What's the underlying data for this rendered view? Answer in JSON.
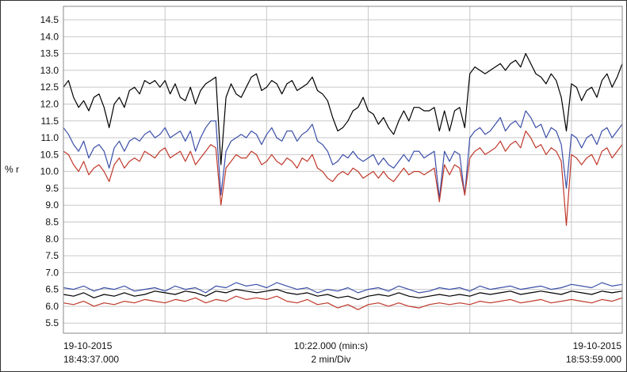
{
  "chart_data": {
    "type": "line",
    "title": "",
    "ylabel": "% r",
    "ylim": [
      5.2,
      14.9
    ],
    "yticks": [
      "14.5",
      "14.0",
      "13.5",
      "13.0",
      "12.5",
      "12.0",
      "11.5",
      "11.0",
      "10.5",
      "10.0",
      "9.5",
      "9.0",
      "8.5",
      "8.0",
      "7.5",
      "7.0",
      "6.5",
      "6.0",
      "5.5"
    ],
    "xlim": [
      0,
      11
    ],
    "x_unit": "minutes from 18:43:37",
    "grid": true,
    "footer": {
      "left_date": "19-10-2015",
      "left_time": "18:43:37.000",
      "center_time": "10:22.000 (min:s)",
      "center_scale": "2 min/Div",
      "right_date": "19-10-2015",
      "right_time": "18:53:59.000"
    },
    "series": [
      {
        "color": "#000000",
        "x": [
          0,
          0.1,
          0.2,
          0.3,
          0.4,
          0.5,
          0.6,
          0.7,
          0.8,
          0.9,
          1.0,
          1.1,
          1.2,
          1.3,
          1.4,
          1.5,
          1.6,
          1.7,
          1.8,
          1.9,
          2.0,
          2.1,
          2.2,
          2.3,
          2.4,
          2.5,
          2.6,
          2.7,
          2.8,
          2.9,
          3.0,
          3.1,
          3.2,
          3.3,
          3.4,
          3.5,
          3.6,
          3.7,
          3.8,
          3.9,
          4.0,
          4.1,
          4.2,
          4.3,
          4.4,
          4.5,
          4.6,
          4.7,
          4.8,
          4.9,
          5.0,
          5.1,
          5.2,
          5.3,
          5.4,
          5.5,
          5.6,
          5.7,
          5.8,
          5.9,
          6.0,
          6.1,
          6.2,
          6.3,
          6.4,
          6.5,
          6.6,
          6.7,
          6.8,
          6.9,
          7.0,
          7.1,
          7.2,
          7.3,
          7.4,
          7.5,
          7.6,
          7.7,
          7.8,
          7.9,
          8.0,
          8.1,
          8.2,
          8.3,
          8.4,
          8.5,
          8.6,
          8.7,
          8.8,
          8.9,
          9.0,
          9.1,
          9.2,
          9.3,
          9.4,
          9.5,
          9.6,
          9.7,
          9.8,
          9.9,
          10.0,
          10.1,
          10.2,
          10.3,
          10.4,
          10.5,
          10.6,
          10.7,
          10.8,
          10.9,
          11.0
        ],
        "values": [
          12.5,
          12.7,
          12.2,
          11.9,
          12.1,
          11.8,
          12.2,
          12.3,
          11.9,
          11.3,
          12.0,
          12.2,
          11.9,
          12.4,
          12.5,
          12.3,
          12.7,
          12.6,
          12.7,
          12.5,
          12.7,
          12.3,
          12.6,
          12.2,
          12.1,
          12.5,
          12.0,
          12.4,
          12.6,
          12.7,
          12.8,
          10.2,
          12.2,
          12.6,
          12.3,
          12.2,
          12.5,
          12.8,
          12.9,
          12.4,
          12.5,
          12.7,
          12.6,
          12.3,
          12.6,
          12.7,
          12.4,
          12.5,
          12.6,
          12.8,
          12.4,
          12.3,
          12.1,
          11.6,
          11.2,
          11.3,
          11.5,
          11.8,
          11.9,
          12.2,
          11.8,
          11.7,
          11.4,
          11.6,
          11.3,
          11.1,
          11.5,
          11.8,
          11.5,
          11.9,
          11.9,
          11.8,
          11.8,
          11.9,
          11.2,
          11.8,
          11.2,
          11.8,
          11.9,
          11.3,
          12.9,
          13.1,
          13.0,
          12.9,
          13.0,
          13.1,
          13.2,
          13.0,
          13.2,
          13.3,
          13.1,
          13.5,
          13.2,
          12.9,
          12.8,
          12.6,
          12.9,
          12.7,
          12.2,
          11.2,
          12.6,
          12.5,
          12.1,
          12.4,
          12.5,
          12.2,
          12.7,
          12.9,
          12.5,
          12.8,
          13.2
        ]
      },
      {
        "color": "#3b4fa8",
        "x": [
          0,
          0.1,
          0.2,
          0.3,
          0.4,
          0.5,
          0.6,
          0.7,
          0.8,
          0.9,
          1.0,
          1.1,
          1.2,
          1.3,
          1.4,
          1.5,
          1.6,
          1.7,
          1.8,
          1.9,
          2.0,
          2.1,
          2.2,
          2.3,
          2.4,
          2.5,
          2.6,
          2.7,
          2.8,
          2.9,
          3.0,
          3.1,
          3.2,
          3.3,
          3.4,
          3.5,
          3.6,
          3.7,
          3.8,
          3.9,
          4.0,
          4.1,
          4.2,
          4.3,
          4.4,
          4.5,
          4.6,
          4.7,
          4.8,
          4.9,
          5.0,
          5.1,
          5.2,
          5.3,
          5.4,
          5.5,
          5.6,
          5.7,
          5.8,
          5.9,
          6.0,
          6.1,
          6.2,
          6.3,
          6.4,
          6.5,
          6.6,
          6.7,
          6.8,
          6.9,
          7.0,
          7.1,
          7.2,
          7.3,
          7.4,
          7.5,
          7.6,
          7.7,
          7.8,
          7.9,
          8.0,
          8.1,
          8.2,
          8.3,
          8.4,
          8.5,
          8.6,
          8.7,
          8.8,
          8.9,
          9.0,
          9.1,
          9.2,
          9.3,
          9.4,
          9.5,
          9.6,
          9.7,
          9.8,
          9.9,
          10.0,
          10.1,
          10.2,
          10.3,
          10.4,
          10.5,
          10.6,
          10.7,
          10.8,
          10.9,
          11.0
        ],
        "values": [
          11.3,
          11.1,
          10.8,
          10.6,
          10.9,
          10.4,
          10.7,
          10.8,
          10.6,
          10.1,
          10.7,
          10.9,
          10.6,
          10.9,
          11.0,
          10.9,
          11.1,
          11.2,
          11.0,
          11.1,
          11.3,
          11.0,
          11.1,
          11.2,
          10.9,
          11.2,
          10.6,
          11.0,
          11.3,
          11.5,
          11.5,
          9.3,
          10.6,
          10.9,
          11.0,
          11.1,
          11.0,
          11.2,
          11.1,
          10.8,
          11.1,
          11.3,
          11.0,
          10.9,
          11.2,
          11.2,
          10.9,
          11.1,
          11.2,
          11.4,
          10.9,
          10.8,
          10.6,
          10.2,
          10.3,
          10.5,
          10.4,
          10.6,
          10.4,
          10.3,
          10.4,
          10.5,
          10.2,
          10.4,
          10.2,
          10.1,
          10.3,
          10.5,
          10.3,
          10.6,
          10.6,
          10.4,
          10.5,
          10.6,
          9.2,
          10.6,
          10.3,
          10.6,
          10.5,
          9.3,
          11.0,
          11.2,
          11.3,
          11.1,
          11.2,
          11.4,
          11.6,
          11.2,
          11.4,
          11.5,
          11.3,
          11.8,
          11.6,
          11.3,
          11.4,
          11.0,
          11.3,
          11.2,
          10.8,
          9.5,
          11.1,
          11.0,
          10.7,
          11.0,
          11.1,
          10.8,
          11.2,
          11.3,
          11.0,
          11.2,
          11.4
        ]
      },
      {
        "color": "#c0392b",
        "x": [
          0,
          0.1,
          0.2,
          0.3,
          0.4,
          0.5,
          0.6,
          0.7,
          0.8,
          0.9,
          1.0,
          1.1,
          1.2,
          1.3,
          1.4,
          1.5,
          1.6,
          1.7,
          1.8,
          1.9,
          2.0,
          2.1,
          2.2,
          2.3,
          2.4,
          2.5,
          2.6,
          2.7,
          2.8,
          2.9,
          3.0,
          3.1,
          3.2,
          3.3,
          3.4,
          3.5,
          3.6,
          3.7,
          3.8,
          3.9,
          4.0,
          4.1,
          4.2,
          4.3,
          4.4,
          4.5,
          4.6,
          4.7,
          4.8,
          4.9,
          5.0,
          5.1,
          5.2,
          5.3,
          5.4,
          5.5,
          5.6,
          5.7,
          5.8,
          5.9,
          6.0,
          6.1,
          6.2,
          6.3,
          6.4,
          6.5,
          6.6,
          6.7,
          6.8,
          6.9,
          7.0,
          7.1,
          7.2,
          7.3,
          7.4,
          7.5,
          7.6,
          7.7,
          7.8,
          7.9,
          8.0,
          8.1,
          8.2,
          8.3,
          8.4,
          8.5,
          8.6,
          8.7,
          8.8,
          8.9,
          9.0,
          9.1,
          9.2,
          9.3,
          9.4,
          9.5,
          9.6,
          9.7,
          9.8,
          9.9,
          10.0,
          10.1,
          10.2,
          10.3,
          10.4,
          10.5,
          10.6,
          10.7,
          10.8,
          10.9,
          11.0
        ],
        "values": [
          10.6,
          10.5,
          10.2,
          10.0,
          10.3,
          9.9,
          10.1,
          10.2,
          10.0,
          9.7,
          10.2,
          10.4,
          10.1,
          10.3,
          10.4,
          10.3,
          10.6,
          10.5,
          10.4,
          10.6,
          10.7,
          10.4,
          10.5,
          10.6,
          10.3,
          10.6,
          10.2,
          10.4,
          10.6,
          10.8,
          10.7,
          9.0,
          10.1,
          10.3,
          10.5,
          10.4,
          10.4,
          10.6,
          10.5,
          10.2,
          10.3,
          10.5,
          10.3,
          10.2,
          10.4,
          10.3,
          10.1,
          10.4,
          10.3,
          10.5,
          10.1,
          10.0,
          9.8,
          9.7,
          9.9,
          10.0,
          9.9,
          10.1,
          10.0,
          9.8,
          9.9,
          10.0,
          9.8,
          10.0,
          9.8,
          9.7,
          9.9,
          10.1,
          9.9,
          10.0,
          10.0,
          9.9,
          10.0,
          10.1,
          9.1,
          10.2,
          9.9,
          10.2,
          10.1,
          9.3,
          10.4,
          10.6,
          10.7,
          10.5,
          10.6,
          10.7,
          10.9,
          10.6,
          10.8,
          10.9,
          10.7,
          11.2,
          11.0,
          10.7,
          10.8,
          10.5,
          10.7,
          10.6,
          10.3,
          8.4,
          10.5,
          10.4,
          10.2,
          10.4,
          10.5,
          10.2,
          10.6,
          10.7,
          10.4,
          10.6,
          10.8
        ]
      },
      {
        "color": "#3b4fa8",
        "x": [
          0,
          0.2,
          0.4,
          0.6,
          0.8,
          1.0,
          1.2,
          1.4,
          1.6,
          1.8,
          2.0,
          2.2,
          2.4,
          2.6,
          2.8,
          3.0,
          3.2,
          3.4,
          3.6,
          3.8,
          4.0,
          4.2,
          4.4,
          4.6,
          4.8,
          5.0,
          5.2,
          5.4,
          5.6,
          5.8,
          6.0,
          6.2,
          6.4,
          6.6,
          6.8,
          7.0,
          7.2,
          7.4,
          7.6,
          7.8,
          8.0,
          8.2,
          8.4,
          8.6,
          8.8,
          9.0,
          9.2,
          9.4,
          9.6,
          9.8,
          10.0,
          10.2,
          10.4,
          10.6,
          10.8,
          11.0
        ],
        "values": [
          6.55,
          6.5,
          6.6,
          6.45,
          6.55,
          6.5,
          6.6,
          6.45,
          6.5,
          6.55,
          6.45,
          6.6,
          6.5,
          6.55,
          6.4,
          6.6,
          6.55,
          6.7,
          6.6,
          6.65,
          6.55,
          6.7,
          6.6,
          6.5,
          6.55,
          6.4,
          6.5,
          6.45,
          6.55,
          6.4,
          6.5,
          6.55,
          6.45,
          6.6,
          6.5,
          6.4,
          6.45,
          6.55,
          6.5,
          6.55,
          6.45,
          6.6,
          6.5,
          6.55,
          6.6,
          6.5,
          6.55,
          6.6,
          6.5,
          6.55,
          6.65,
          6.6,
          6.55,
          6.7,
          6.6,
          6.65
        ]
      },
      {
        "color": "#000000",
        "x": [
          0,
          0.2,
          0.4,
          0.6,
          0.8,
          1.0,
          1.2,
          1.4,
          1.6,
          1.8,
          2.0,
          2.2,
          2.4,
          2.6,
          2.8,
          3.0,
          3.2,
          3.4,
          3.6,
          3.8,
          4.0,
          4.2,
          4.4,
          4.6,
          4.8,
          5.0,
          5.2,
          5.4,
          5.6,
          5.8,
          6.0,
          6.2,
          6.4,
          6.6,
          6.8,
          7.0,
          7.2,
          7.4,
          7.6,
          7.8,
          8.0,
          8.2,
          8.4,
          8.6,
          8.8,
          9.0,
          9.2,
          9.4,
          9.6,
          9.8,
          10.0,
          10.2,
          10.4,
          10.6,
          10.8,
          11.0
        ],
        "values": [
          6.35,
          6.3,
          6.4,
          6.25,
          6.35,
          6.3,
          6.4,
          6.3,
          6.35,
          6.45,
          6.4,
          6.35,
          6.45,
          6.4,
          6.3,
          6.45,
          6.4,
          6.5,
          6.45,
          6.4,
          6.45,
          6.5,
          6.4,
          6.35,
          6.4,
          6.3,
          6.35,
          6.25,
          6.3,
          6.2,
          6.3,
          6.35,
          6.3,
          6.4,
          6.3,
          6.25,
          6.3,
          6.35,
          6.3,
          6.35,
          6.3,
          6.4,
          6.35,
          6.4,
          6.45,
          6.35,
          6.4,
          6.45,
          6.4,
          6.35,
          6.45,
          6.4,
          6.35,
          6.45,
          6.4,
          6.45
        ]
      },
      {
        "color": "#c0392b",
        "x": [
          0,
          0.2,
          0.4,
          0.6,
          0.8,
          1.0,
          1.2,
          1.4,
          1.6,
          1.8,
          2.0,
          2.2,
          2.4,
          2.6,
          2.8,
          3.0,
          3.2,
          3.4,
          3.6,
          3.8,
          4.0,
          4.2,
          4.4,
          4.6,
          4.8,
          5.0,
          5.2,
          5.4,
          5.6,
          5.8,
          6.0,
          6.2,
          6.4,
          6.6,
          6.8,
          7.0,
          7.2,
          7.4,
          7.6,
          7.8,
          8.0,
          8.2,
          8.4,
          8.6,
          8.8,
          9.0,
          9.2,
          9.4,
          9.6,
          9.8,
          10.0,
          10.2,
          10.4,
          10.6,
          10.8,
          11.0
        ],
        "values": [
          6.1,
          6.05,
          6.15,
          6.0,
          6.1,
          6.05,
          6.15,
          6.1,
          6.2,
          6.15,
          6.1,
          6.2,
          6.15,
          6.25,
          6.1,
          6.2,
          6.15,
          6.3,
          6.2,
          6.25,
          6.2,
          6.3,
          6.15,
          6.1,
          6.2,
          6.05,
          6.1,
          5.95,
          6.05,
          5.9,
          6.05,
          6.1,
          6.0,
          6.1,
          6.0,
          5.95,
          6.05,
          6.1,
          6.05,
          6.1,
          6.05,
          6.15,
          6.1,
          6.15,
          6.2,
          6.1,
          6.15,
          6.2,
          6.1,
          6.15,
          6.2,
          6.15,
          6.1,
          6.2,
          6.15,
          6.25
        ]
      }
    ]
  }
}
